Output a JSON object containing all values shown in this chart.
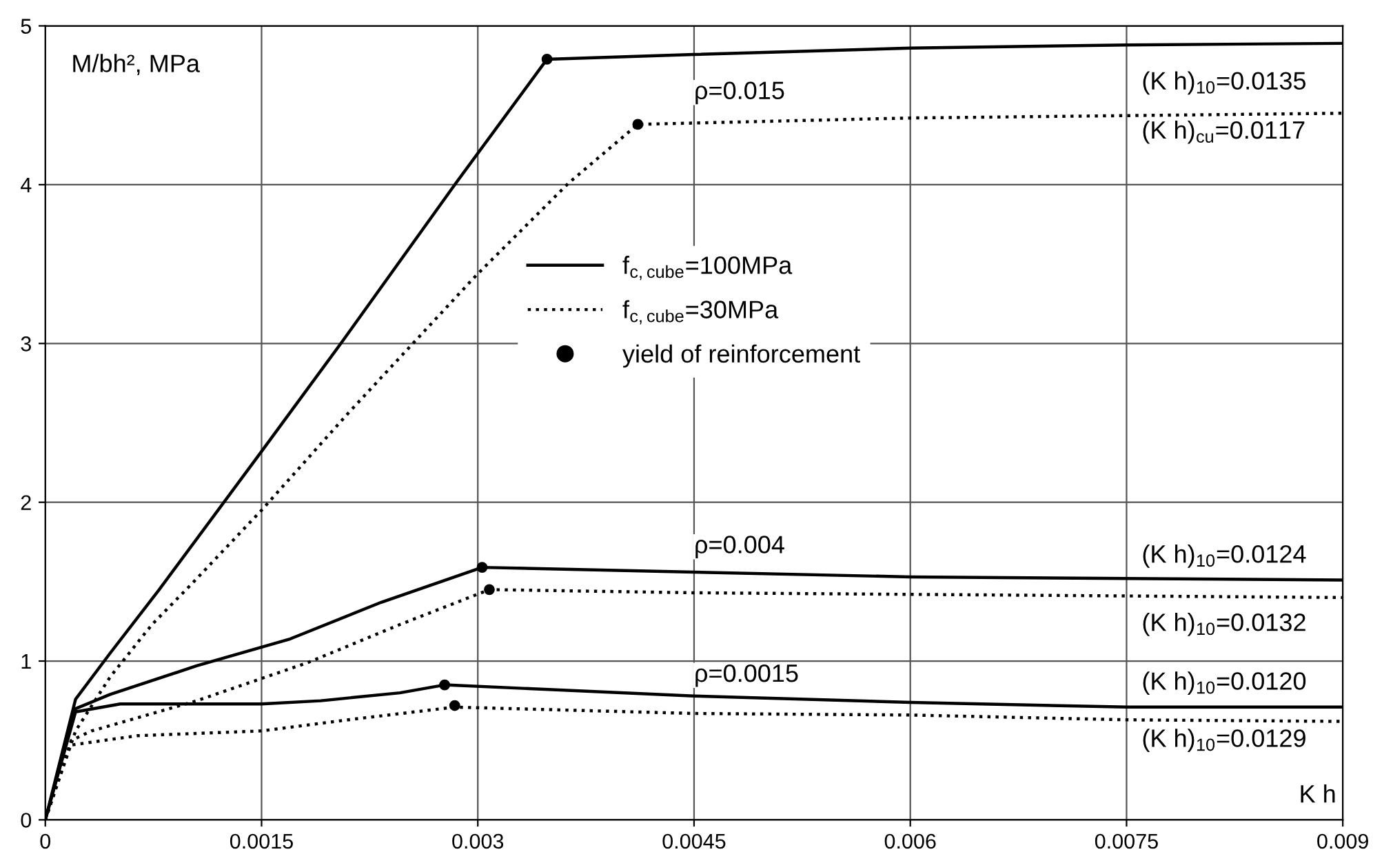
{
  "chart_data": {
    "type": "line",
    "xlabel": "K h",
    "ylabel": "M/bh², MPa",
    "xlim": [
      0,
      0.009
    ],
    "ylim": [
      0,
      5
    ],
    "xticks": [
      0,
      0.0015,
      0.003,
      0.0045,
      0.006,
      0.0075,
      0.009
    ],
    "yticks": [
      0,
      1,
      2,
      3,
      4,
      5
    ],
    "grid": true,
    "legend": "center",
    "marker": "none",
    "series": [
      {
        "name": "f$_{c,cube}$=100MPa",
        "color": "#000000",
        "line_style": "solid",
        "x": [
          0,
          0.00021,
          0.00045,
          0.00079,
          0.0015,
          0.00205,
          0.00284,
          0.00348,
          0.0045,
          0.006,
          0.0075,
          0.009
        ],
        "values": [
          0,
          0.76,
          1.05,
          1.45,
          2.32,
          3.0,
          4.0,
          4.79,
          4.82,
          4.86,
          4.88,
          4.89
        ]
      },
      {
        "name": "f$_{c,cube}$=30MPa",
        "color": "#000000",
        "line_style": "dotted",
        "x": [
          0,
          0.00021,
          0.00045,
          0.00074,
          0.00102,
          0.0015,
          0.0021,
          0.00256,
          0.00299,
          0.00363,
          0.00411,
          0.006,
          0.009
        ],
        "values": [
          0,
          0.56,
          0.9,
          1.23,
          1.49,
          1.95,
          2.56,
          3.01,
          3.43,
          4.01,
          4.38,
          4.42,
          4.45
        ]
      },
      {
        "color": "#000000",
        "line_style": "solid",
        "x": [
          0,
          0.00021,
          0.00045,
          0.00105,
          0.0017,
          0.00233,
          0.00303,
          0.0045,
          0.006,
          0.009
        ],
        "values": [
          0,
          0.7,
          0.79,
          0.97,
          1.14,
          1.37,
          1.59,
          1.56,
          1.53,
          1.51
        ]
      },
      {
        "color": "#000000",
        "line_style": "dotted",
        "x": [
          0,
          0.00018,
          0.00032,
          0.00105,
          0.00182,
          0.00246,
          0.00308,
          0.0045,
          0.009
        ],
        "values": [
          0,
          0.5,
          0.56,
          0.75,
          0.99,
          1.23,
          1.45,
          1.43,
          1.4
        ]
      },
      {
        "color": "#000000",
        "line_style": "solid",
        "x": [
          0,
          0.00021,
          0.00052,
          0.0015,
          0.00191,
          0.00246,
          0.00277,
          0.0045,
          0.006,
          0.0075,
          0.009
        ],
        "values": [
          0,
          0.68,
          0.73,
          0.73,
          0.75,
          0.8,
          0.85,
          0.78,
          0.74,
          0.71,
          0.71
        ]
      },
      {
        "color": "#000000",
        "line_style": "dotted",
        "x": [
          0,
          0.00017,
          0.00064,
          0.0015,
          0.0021,
          0.00284,
          0.0045,
          0.006,
          0.0075,
          0.009
        ],
        "values": [
          0,
          0.47,
          0.53,
          0.56,
          0.63,
          0.71,
          0.67,
          0.66,
          0.63,
          0.62
        ]
      },
      {
        "name": "yield of reinforcement",
        "type": "scatter",
        "marker": "circle",
        "color": "#000000",
        "x": [
          0.00348,
          0.00411,
          0.00303,
          0.00308,
          0.00277,
          0.00284
        ],
        "values": [
          4.79,
          4.38,
          1.59,
          1.45,
          0.85,
          0.72
        ]
      }
    ],
    "annotations": [
      "ρ=0.015",
      "ρ=0.004",
      "ρ=0.0015",
      "(K h)$_{10}$=0.0135",
      "(K h)$_{cu}$=0.0117",
      "(K h)$_{10}$=0.0124",
      "(K h)$_{10}$=0.0132",
      "(K h)$_{10}$=0.0120",
      "(K h)$_{10}$=0.0129"
    ]
  }
}
